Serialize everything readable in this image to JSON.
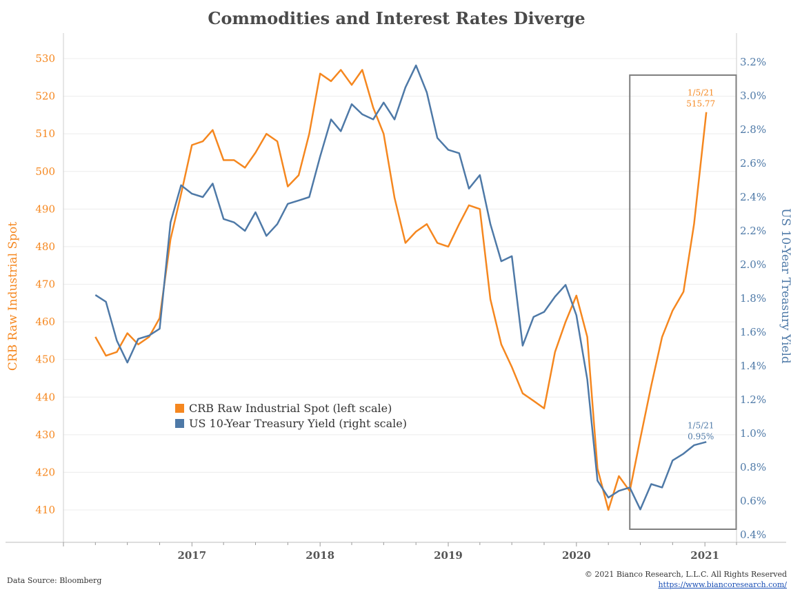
{
  "chart_data": {
    "type": "line",
    "title": "Commodities and Interest Rates Diverge",
    "ylabel_left": "CRB Raw Industrial Spot",
    "ylabel_right": "US 10-Year Treasury Yield",
    "ylim_left": [
      406,
      532
    ],
    "ylim_right": [
      0.4,
      3.3
    ],
    "left_ticks": [
      "410",
      "420",
      "430",
      "440",
      "450",
      "460",
      "470",
      "480",
      "490",
      "500",
      "510",
      "520",
      "530"
    ],
    "right_ticks": [
      "0.4%",
      "0.6%",
      "0.8%",
      "1.0%",
      "1.2%",
      "1.4%",
      "1.6%",
      "1.8%",
      "2.0%",
      "2.2%",
      "2.4%",
      "2.6%",
      "2.8%",
      "3.0%",
      "3.2%"
    ],
    "x_ticks": [
      "2017",
      "2018",
      "2019",
      "2020",
      "2021"
    ],
    "grid": "horizontal",
    "legend_position": "lower-left",
    "series": [
      {
        "name": "CRB Raw Industrial Spot (left scale)",
        "axis": "left",
        "color": "#f5871f",
        "points": [
          [
            "2016-04-01",
            456
          ],
          [
            "2016-05-01",
            451
          ],
          [
            "2016-06-01",
            452
          ],
          [
            "2016-07-01",
            457
          ],
          [
            "2016-08-01",
            454
          ],
          [
            "2016-09-01",
            456
          ],
          [
            "2016-10-01",
            461
          ],
          [
            "2016-11-01",
            482
          ],
          [
            "2016-12-01",
            494
          ],
          [
            "2017-01-01",
            507
          ],
          [
            "2017-02-01",
            508
          ],
          [
            "2017-03-01",
            511
          ],
          [
            "2017-04-01",
            503
          ],
          [
            "2017-05-01",
            503
          ],
          [
            "2017-06-01",
            501
          ],
          [
            "2017-07-01",
            505
          ],
          [
            "2017-08-01",
            510
          ],
          [
            "2017-09-01",
            508
          ],
          [
            "2017-10-01",
            496
          ],
          [
            "2017-11-01",
            499
          ],
          [
            "2017-12-01",
            510
          ],
          [
            "2018-01-01",
            526
          ],
          [
            "2018-02-01",
            524
          ],
          [
            "2018-03-01",
            527
          ],
          [
            "2018-04-01",
            523
          ],
          [
            "2018-05-01",
            527
          ],
          [
            "2018-06-01",
            517
          ],
          [
            "2018-07-01",
            510
          ],
          [
            "2018-08-01",
            493
          ],
          [
            "2018-09-01",
            481
          ],
          [
            "2018-10-01",
            484
          ],
          [
            "2018-11-01",
            486
          ],
          [
            "2018-12-01",
            481
          ],
          [
            "2019-01-01",
            480
          ],
          [
            "2019-02-01",
            486
          ],
          [
            "2019-03-01",
            491
          ],
          [
            "2019-04-01",
            490
          ],
          [
            "2019-05-01",
            466
          ],
          [
            "2019-06-01",
            454
          ],
          [
            "2019-07-01",
            448
          ],
          [
            "2019-08-01",
            441
          ],
          [
            "2019-09-01",
            439
          ],
          [
            "2019-10-01",
            437
          ],
          [
            "2019-11-01",
            452
          ],
          [
            "2019-12-01",
            460
          ],
          [
            "2020-01-01",
            467
          ],
          [
            "2020-02-01",
            456
          ],
          [
            "2020-03-01",
            421
          ],
          [
            "2020-04-01",
            410
          ],
          [
            "2020-05-01",
            419
          ],
          [
            "2020-06-01",
            415
          ],
          [
            "2020-07-01",
            429
          ],
          [
            "2020-08-01",
            443
          ],
          [
            "2020-09-01",
            456
          ],
          [
            "2020-10-01",
            463
          ],
          [
            "2020-11-01",
            468
          ],
          [
            "2020-12-01",
            486
          ],
          [
            "2021-01-05",
            515.77
          ]
        ]
      },
      {
        "name": "US 10-Year Treasury Yield (right scale)",
        "axis": "right",
        "color": "#4e79a7",
        "points": [
          [
            "2016-04-01",
            1.82
          ],
          [
            "2016-05-01",
            1.78
          ],
          [
            "2016-06-01",
            1.55
          ],
          [
            "2016-07-01",
            1.42
          ],
          [
            "2016-08-01",
            1.56
          ],
          [
            "2016-09-01",
            1.58
          ],
          [
            "2016-10-01",
            1.62
          ],
          [
            "2016-11-01",
            2.25
          ],
          [
            "2016-12-01",
            2.47
          ],
          [
            "2017-01-01",
            2.42
          ],
          [
            "2017-02-01",
            2.4
          ],
          [
            "2017-03-01",
            2.48
          ],
          [
            "2017-04-01",
            2.27
          ],
          [
            "2017-05-01",
            2.25
          ],
          [
            "2017-06-01",
            2.2
          ],
          [
            "2017-07-01",
            2.31
          ],
          [
            "2017-08-01",
            2.17
          ],
          [
            "2017-09-01",
            2.24
          ],
          [
            "2017-10-01",
            2.36
          ],
          [
            "2017-11-01",
            2.38
          ],
          [
            "2017-12-01",
            2.4
          ],
          [
            "2018-01-01",
            2.64
          ],
          [
            "2018-02-01",
            2.86
          ],
          [
            "2018-03-01",
            2.79
          ],
          [
            "2018-04-01",
            2.95
          ],
          [
            "2018-05-01",
            2.89
          ],
          [
            "2018-06-01",
            2.86
          ],
          [
            "2018-07-01",
            2.96
          ],
          [
            "2018-08-01",
            2.86
          ],
          [
            "2018-09-01",
            3.05
          ],
          [
            "2018-10-01",
            3.18
          ],
          [
            "2018-11-01",
            3.02
          ],
          [
            "2018-12-01",
            2.75
          ],
          [
            "2019-01-01",
            2.68
          ],
          [
            "2019-02-01",
            2.66
          ],
          [
            "2019-03-01",
            2.45
          ],
          [
            "2019-04-01",
            2.53
          ],
          [
            "2019-05-01",
            2.24
          ],
          [
            "2019-06-01",
            2.02
          ],
          [
            "2019-07-01",
            2.05
          ],
          [
            "2019-08-01",
            1.52
          ],
          [
            "2019-09-01",
            1.69
          ],
          [
            "2019-10-01",
            1.72
          ],
          [
            "2019-11-01",
            1.81
          ],
          [
            "2019-12-01",
            1.88
          ],
          [
            "2020-01-01",
            1.7
          ],
          [
            "2020-02-01",
            1.32
          ],
          [
            "2020-03-01",
            0.72
          ],
          [
            "2020-04-01",
            0.62
          ],
          [
            "2020-05-01",
            0.66
          ],
          [
            "2020-06-01",
            0.68
          ],
          [
            "2020-07-01",
            0.55
          ],
          [
            "2020-08-01",
            0.7
          ],
          [
            "2020-09-01",
            0.68
          ],
          [
            "2020-10-01",
            0.84
          ],
          [
            "2020-11-01",
            0.88
          ],
          [
            "2020-12-01",
            0.93
          ],
          [
            "2021-01-05",
            0.95
          ]
        ]
      }
    ],
    "annotations": [
      {
        "series": 0,
        "date_label": "1/5/21",
        "value_label": "515.77"
      },
      {
        "series": 1,
        "date_label": "1/5/21",
        "value_label": "0.95%"
      }
    ],
    "highlight_box": {
      "from": "2020-06-01",
      "to": "2021-03-31",
      "color": "#7f7f7f"
    }
  },
  "footer": {
    "source": "Data Source: Bloomberg",
    "copyright": "© 2021 Bianco Research, L.L.C. All Rights Reserved",
    "url": "https://www.biancoresearch.com/"
  }
}
